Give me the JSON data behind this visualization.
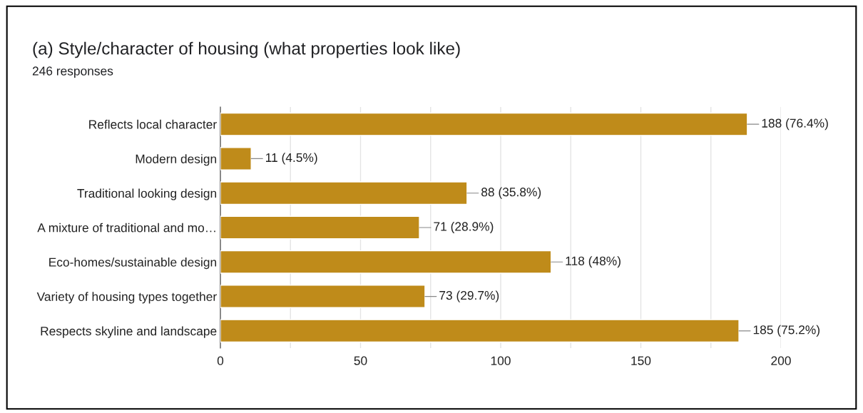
{
  "chart_data": {
    "type": "bar",
    "orientation": "horizontal",
    "title": "(a) Style/character of housing (what properties look like)",
    "subtitle": "246 responses",
    "categories": [
      "Reflects local character",
      "Modern design",
      "Traditional looking design",
      "A mixture of traditional and mo…",
      "Eco-homes/sustainable design",
      "Variety of housing types together",
      "Respects skyline and landscape"
    ],
    "values": [
      188,
      11,
      88,
      71,
      118,
      73,
      185
    ],
    "value_labels": [
      "188 (76.4%)",
      "11 (4.5%)",
      "88 (35.8%)",
      "71 (28.9%)",
      "118 (48%)",
      "73 (29.7%)",
      "185 (75.2%)"
    ],
    "color": "#bf8b1a",
    "xlim": [
      0,
      200
    ],
    "xticks": [
      0,
      {
        "value": 25,
        "label": null
      },
      50,
      {
        "value": 75,
        "label": null
      },
      100,
      {
        "value": 125,
        "label": null
      },
      150,
      {
        "value": 175,
        "label": null
      },
      200
    ],
    "grid": "x",
    "legend": false
  }
}
